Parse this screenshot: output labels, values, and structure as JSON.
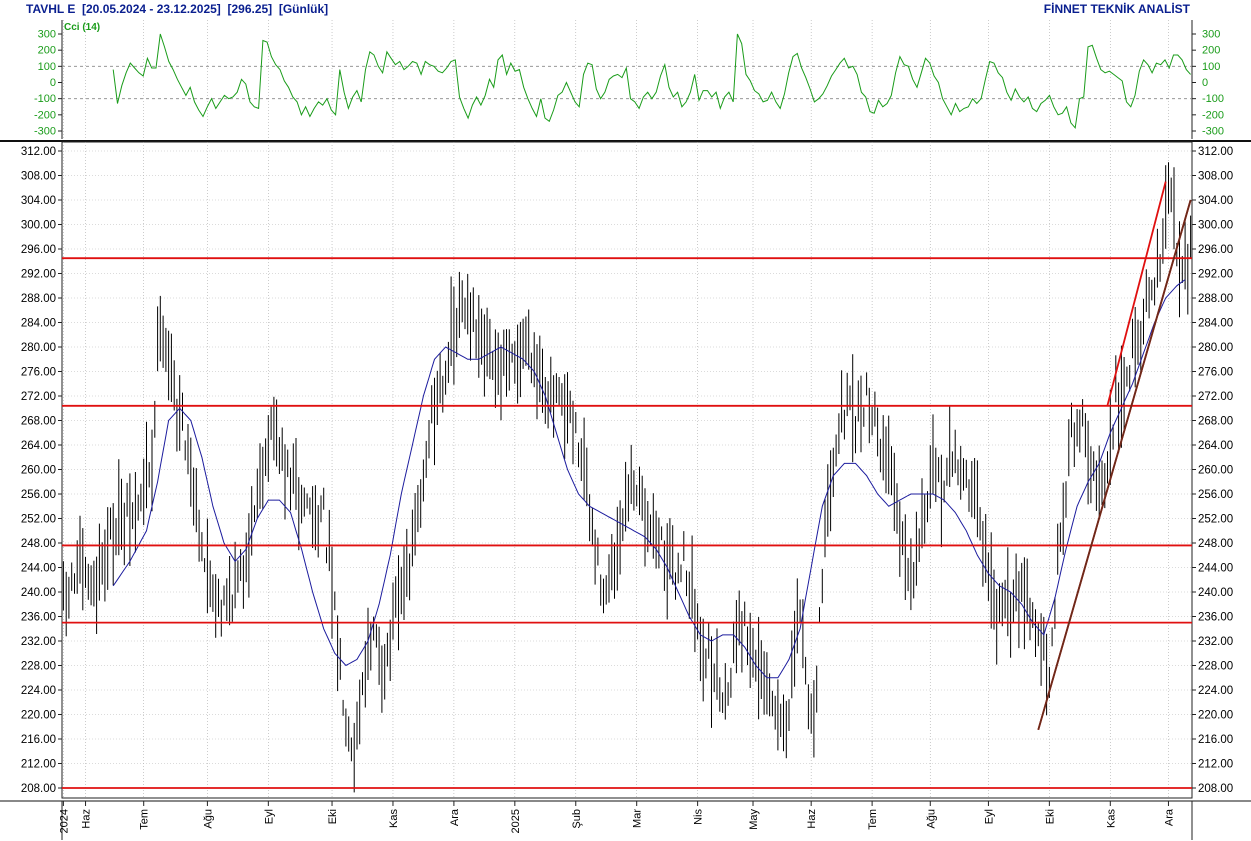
{
  "header": {
    "symbol": "TAVHL E",
    "date_range": "[20.05.2024 - 23.12.2025]",
    "last_price": "[296.25]",
    "period": "[Günlük]",
    "brand": "FİNNET TEKNİK ANALİST"
  },
  "indicator": {
    "label": "Cci (14)",
    "ticks": [
      "300",
      "200",
      "100",
      "0",
      "-100",
      "-200",
      "-300"
    ],
    "tick_values": [
      300,
      200,
      100,
      0,
      -100,
      -200,
      -300
    ],
    "ylim": [
      -330,
      330
    ],
    "reference_lines": [
      100,
      -100
    ],
    "line_color": "#1a9c1a",
    "cci": [
      80,
      -130,
      -20,
      60,
      120,
      90,
      60,
      40,
      150,
      90,
      90,
      300,
      220,
      130,
      80,
      20,
      -30,
      -80,
      -30,
      -120,
      -170,
      -210,
      -150,
      -100,
      -160,
      -120,
      -80,
      -100,
      -90,
      -60,
      20,
      -10,
      -120,
      -150,
      -160,
      260,
      250,
      160,
      110,
      80,
      10,
      -30,
      -90,
      -120,
      -200,
      -150,
      -210,
      -160,
      -120,
      -140,
      -100,
      -170,
      -200,
      80,
      -60,
      -160,
      -90,
      -50,
      -120,
      80,
      190,
      170,
      100,
      60,
      190,
      150,
      110,
      130,
      80,
      100,
      130,
      120,
      50,
      130,
      110,
      100,
      70,
      60,
      90,
      130,
      140,
      -90,
      -160,
      -220,
      -140,
      -90,
      -140,
      -80,
      20,
      -30,
      140,
      170,
      50,
      120,
      70,
      80,
      -30,
      -100,
      -160,
      -210,
      -100,
      -220,
      -240,
      -170,
      -80,
      -60,
      0,
      -60,
      -120,
      -150,
      50,
      120,
      110,
      -40,
      -100,
      -60,
      20,
      40,
      50,
      30,
      90,
      -100,
      -120,
      -160,
      -90,
      -60,
      -100,
      -60,
      40,
      110,
      -30,
      -90,
      -60,
      -150,
      -120,
      -60,
      50,
      -110,
      -50,
      -50,
      -90,
      -60,
      -160,
      -90,
      -60,
      -120,
      300,
      240,
      50,
      10,
      -50,
      -70,
      -120,
      -110,
      -60,
      -120,
      -160,
      -70,
      60,
      160,
      180,
      90,
      30,
      -40,
      -120,
      -100,
      -70,
      -20,
      40,
      80,
      120,
      150,
      90,
      100,
      50,
      -60,
      -90,
      -180,
      -190,
      -110,
      -150,
      -130,
      -80,
      60,
      160,
      110,
      100,
      20,
      -30,
      60,
      150,
      120,
      40,
      0,
      -100,
      -150,
      -200,
      -130,
      -180,
      -160,
      -150,
      -100,
      -130,
      -100,
      20,
      130,
      120,
      60,
      30,
      -60,
      -110,
      -40,
      -90,
      -120,
      -90,
      -160,
      -180,
      -130,
      -110,
      -80,
      -150,
      -200,
      -190,
      -150,
      -250,
      -280,
      -100,
      -90,
      220,
      230,
      150,
      80,
      60,
      70,
      50,
      30,
      10,
      -120,
      -150,
      -80,
      70,
      140,
      110,
      60,
      120,
      110,
      140,
      90,
      170,
      170,
      140,
      80,
      50
    ]
  },
  "chart_data": {
    "type": "bar",
    "subtype": "ohlc-bars",
    "ylim": [
      206,
      314
    ],
    "y_ticks": [
      "312.00",
      "308.00",
      "304.00",
      "300.00",
      "296.00",
      "292.00",
      "288.00",
      "284.00",
      "280.00",
      "276.00",
      "272.00",
      "268.00",
      "264.00",
      "260.00",
      "256.00",
      "252.00",
      "248.00",
      "244.00",
      "240.00",
      "236.00",
      "232.00",
      "228.00",
      "224.00",
      "220.00",
      "216.00",
      "212.00",
      "208.00"
    ],
    "y_tick_values": [
      312,
      308,
      304,
      300,
      296,
      292,
      288,
      284,
      280,
      276,
      272,
      268,
      264,
      260,
      256,
      252,
      248,
      244,
      240,
      236,
      232,
      228,
      224,
      220,
      216,
      212,
      208
    ],
    "x_labels": [
      "2024",
      "Haz",
      "Tem",
      "Ağu",
      "Eyl",
      "Eki",
      "Kas",
      "Ara",
      "2025",
      "Şub",
      "Mar",
      "Nis",
      "May",
      "Haz",
      "Tem",
      "Ağu",
      "Eyl",
      "Eki",
      "Kas",
      "Ara"
    ],
    "x_label_sessions": [
      0,
      8,
      29,
      52,
      74,
      97,
      119,
      141,
      163,
      185,
      207,
      229,
      249,
      270,
      292,
      313,
      334,
      356,
      378,
      399
    ],
    "sessions": 408,
    "horizontal_lines": [
      294.5,
      270.4,
      247.6,
      235.0,
      208.0
    ],
    "horizontal_line_color": "#e01010",
    "trend_lines": [
      {
        "from": [
          352,
          217.5
        ],
        "to": [
          407,
          304.0
        ],
        "color": "#e01010"
      },
      {
        "from": [
          352,
          217.5
        ],
        "to": [
          407,
          304.0
        ],
        "color": "#6b2a1a"
      },
      {
        "from": [
          377,
          270.5
        ],
        "to": [
          398,
          307.0
        ],
        "color": "#e01010"
      }
    ],
    "close_anchors": [
      [
        0,
        238
      ],
      [
        6,
        244
      ],
      [
        10,
        240
      ],
      [
        14,
        246
      ],
      [
        20,
        252
      ],
      [
        26,
        252
      ],
      [
        32,
        262
      ],
      [
        35,
        287
      ],
      [
        40,
        272
      ],
      [
        44,
        266
      ],
      [
        48,
        255
      ],
      [
        52,
        242
      ],
      [
        58,
        238
      ],
      [
        64,
        242
      ],
      [
        68,
        252
      ],
      [
        72,
        262
      ],
      [
        76,
        267
      ],
      [
        80,
        260
      ],
      [
        84,
        256
      ],
      [
        88,
        254
      ],
      [
        94,
        252
      ],
      [
        98,
        236
      ],
      [
        102,
        220
      ],
      [
        105,
        214
      ],
      [
        108,
        226
      ],
      [
        112,
        232
      ],
      [
        116,
        228
      ],
      [
        120,
        236
      ],
      [
        124,
        243
      ],
      [
        128,
        252
      ],
      [
        132,
        266
      ],
      [
        136,
        274
      ],
      [
        140,
        280
      ],
      [
        146,
        288
      ],
      [
        150,
        280
      ],
      [
        156,
        276
      ],
      [
        160,
        276
      ],
      [
        164,
        278
      ],
      [
        168,
        282
      ],
      [
        172,
        276
      ],
      [
        176,
        271
      ],
      [
        180,
        270
      ],
      [
        184,
        267
      ],
      [
        188,
        260
      ],
      [
        192,
        246
      ],
      [
        196,
        240
      ],
      [
        200,
        244
      ],
      [
        204,
        256
      ],
      [
        208,
        258
      ],
      [
        212,
        252
      ],
      [
        216,
        248
      ],
      [
        220,
        242
      ],
      [
        224,
        246
      ],
      [
        228,
        236
      ],
      [
        232,
        230
      ],
      [
        236,
        226
      ],
      [
        240,
        224
      ],
      [
        244,
        237
      ],
      [
        248,
        232
      ],
      [
        252,
        226
      ],
      [
        256,
        221
      ],
      [
        260,
        219
      ],
      [
        262,
        220
      ],
      [
        266,
        238
      ],
      [
        268,
        226
      ],
      [
        271,
        218
      ],
      [
        274,
        244
      ],
      [
        278,
        264
      ],
      [
        282,
        270
      ],
      [
        286,
        268
      ],
      [
        290,
        272
      ],
      [
        294,
        266
      ],
      [
        298,
        262
      ],
      [
        302,
        252
      ],
      [
        306,
        244
      ],
      [
        310,
        252
      ],
      [
        314,
        258
      ],
      [
        318,
        258
      ],
      [
        322,
        262
      ],
      [
        326,
        258
      ],
      [
        330,
        254
      ],
      [
        334,
        242
      ],
      [
        338,
        236
      ],
      [
        342,
        238
      ],
      [
        346,
        242
      ],
      [
        350,
        236
      ],
      [
        354,
        230
      ],
      [
        356,
        224
      ],
      [
        360,
        250
      ],
      [
        364,
        266
      ],
      [
        368,
        268
      ],
      [
        372,
        258
      ],
      [
        376,
        256
      ],
      [
        380,
        272
      ],
      [
        384,
        276
      ],
      [
        388,
        282
      ],
      [
        392,
        288
      ],
      [
        396,
        294
      ],
      [
        399,
        306
      ],
      [
        402,
        298
      ],
      [
        405,
        294
      ],
      [
        407,
        296
      ]
    ],
    "ma_anchors": [
      [
        18,
        241
      ],
      [
        24,
        245
      ],
      [
        30,
        250
      ],
      [
        34,
        258
      ],
      [
        38,
        268
      ],
      [
        42,
        270
      ],
      [
        46,
        268
      ],
      [
        50,
        262
      ],
      [
        54,
        254
      ],
      [
        58,
        248
      ],
      [
        62,
        245
      ],
      [
        66,
        247
      ],
      [
        70,
        252
      ],
      [
        74,
        255
      ],
      [
        78,
        255
      ],
      [
        82,
        253
      ],
      [
        86,
        247
      ],
      [
        90,
        240
      ],
      [
        94,
        234
      ],
      [
        98,
        230
      ],
      [
        102,
        228
      ],
      [
        106,
        229
      ],
      [
        110,
        232
      ],
      [
        114,
        238
      ],
      [
        118,
        246
      ],
      [
        122,
        256
      ],
      [
        126,
        264
      ],
      [
        130,
        272
      ],
      [
        134,
        278
      ],
      [
        138,
        280
      ],
      [
        142,
        279
      ],
      [
        146,
        278
      ],
      [
        150,
        278
      ],
      [
        154,
        279
      ],
      [
        158,
        280
      ],
      [
        162,
        279
      ],
      [
        166,
        278
      ],
      [
        170,
        276
      ],
      [
        174,
        272
      ],
      [
        178,
        266
      ],
      [
        182,
        260
      ],
      [
        186,
        256
      ],
      [
        190,
        254
      ],
      [
        194,
        253
      ],
      [
        198,
        252
      ],
      [
        202,
        251
      ],
      [
        206,
        250
      ],
      [
        210,
        249
      ],
      [
        214,
        247
      ],
      [
        218,
        244
      ],
      [
        222,
        240
      ],
      [
        226,
        236
      ],
      [
        230,
        233
      ],
      [
        234,
        232
      ],
      [
        238,
        233
      ],
      [
        242,
        233
      ],
      [
        246,
        231
      ],
      [
        250,
        228
      ],
      [
        254,
        226
      ],
      [
        258,
        226
      ],
      [
        262,
        229
      ],
      [
        266,
        234
      ],
      [
        270,
        244
      ],
      [
        274,
        254
      ],
      [
        278,
        259
      ],
      [
        282,
        261
      ],
      [
        286,
        261
      ],
      [
        290,
        259
      ],
      [
        294,
        256
      ],
      [
        298,
        254
      ],
      [
        302,
        255
      ],
      [
        306,
        256
      ],
      [
        310,
        256
      ],
      [
        314,
        256
      ],
      [
        318,
        255
      ],
      [
        322,
        253
      ],
      [
        326,
        250
      ],
      [
        330,
        246
      ],
      [
        334,
        243
      ],
      [
        338,
        241
      ],
      [
        342,
        240
      ],
      [
        346,
        238
      ],
      [
        350,
        235
      ],
      [
        354,
        233
      ],
      [
        358,
        239
      ],
      [
        362,
        247
      ],
      [
        366,
        254
      ],
      [
        370,
        258
      ],
      [
        374,
        261
      ],
      [
        378,
        266
      ],
      [
        382,
        270
      ],
      [
        386,
        274
      ],
      [
        390,
        279
      ],
      [
        394,
        284
      ],
      [
        398,
        288
      ],
      [
        402,
        290
      ],
      [
        405,
        291
      ]
    ]
  }
}
